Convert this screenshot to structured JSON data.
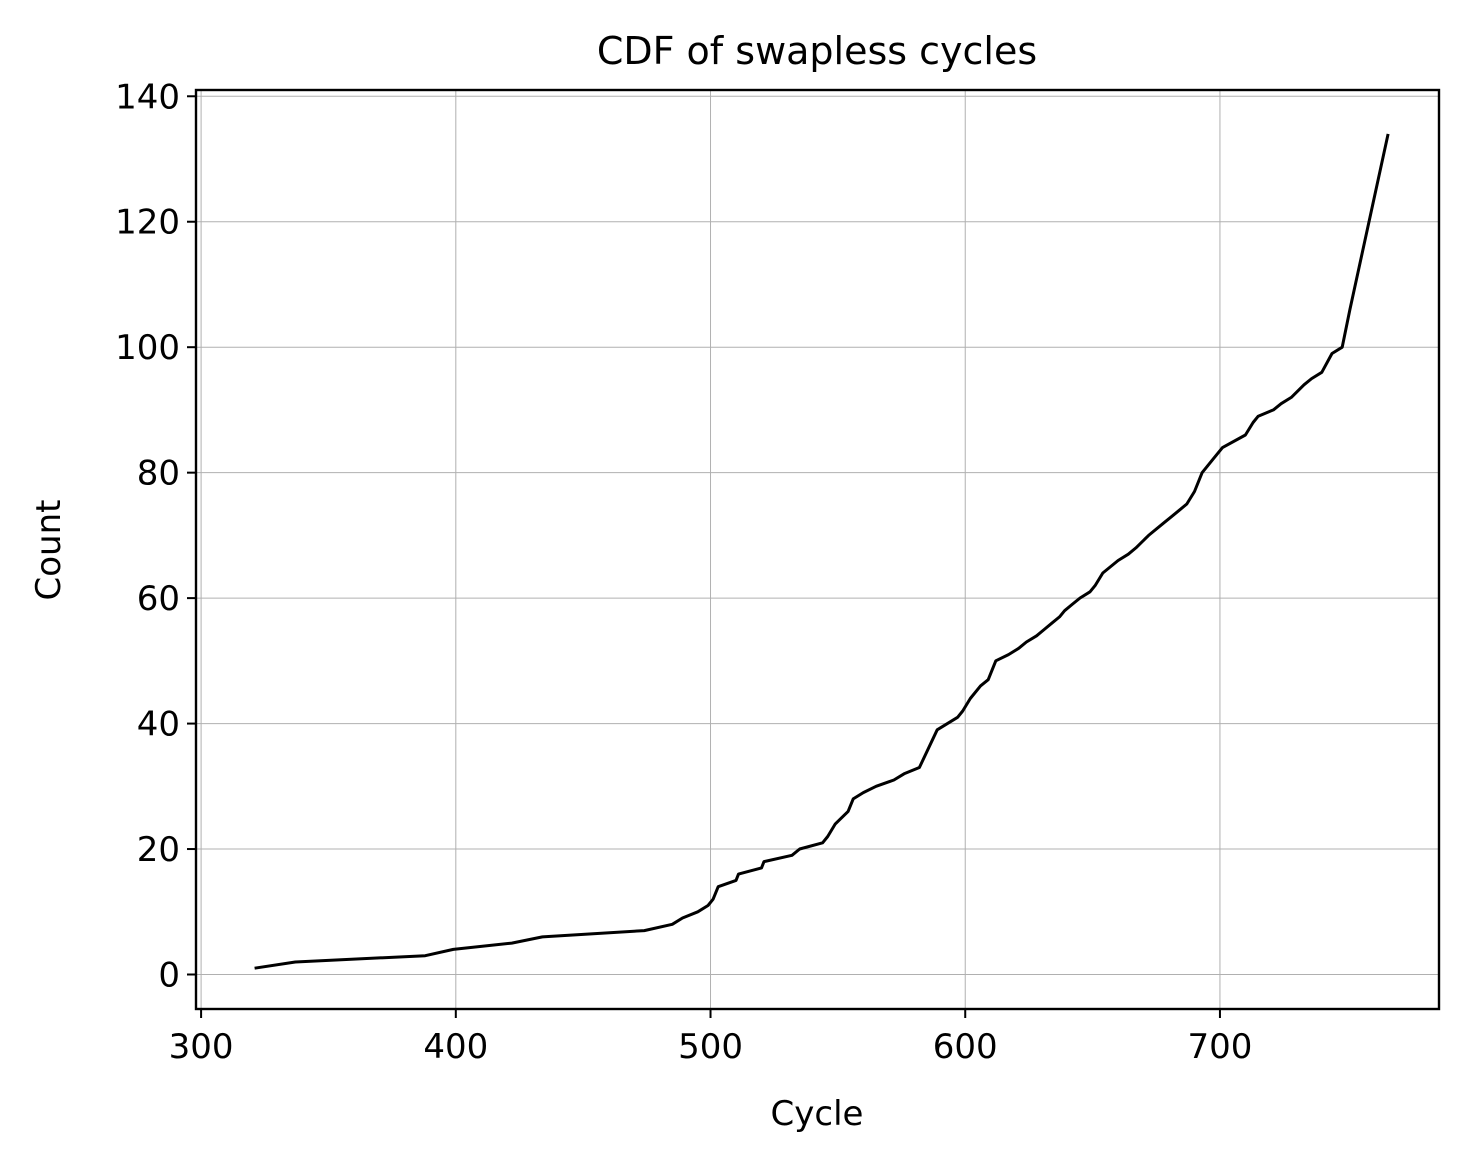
{
  "chart_data": {
    "type": "line",
    "title": "CDF of swapless cycles",
    "xlabel": "Cycle",
    "ylabel": "Count",
    "xlim": [
      298,
      786
    ],
    "ylim": [
      -5.5,
      141
    ],
    "xticks": [
      300,
      400,
      500,
      600,
      700
    ],
    "yticks": [
      0,
      20,
      40,
      60,
      80,
      100,
      120,
      140
    ],
    "grid": true,
    "line_color": "#000000",
    "series": [
      {
        "x": [
          321,
          337,
          388,
          399,
          422,
          434,
          474,
          485,
          489,
          495,
          499,
          501,
          503,
          510,
          511,
          520,
          521,
          532,
          535,
          544,
          546,
          549,
          554,
          556,
          560,
          565,
          572,
          576,
          582,
          589,
          597,
          599,
          602,
          606,
          609,
          612,
          617,
          621,
          624,
          628,
          631,
          634,
          637,
          639,
          642,
          645,
          649,
          651,
          654,
          660,
          664,
          667,
          672,
          678,
          681,
          684,
          687,
          690,
          693,
          697,
          701,
          710,
          713,
          715,
          721,
          724,
          728,
          733,
          736,
          740,
          744,
          748,
          751,
          766
        ],
        "y": [
          1,
          2,
          3,
          4,
          5,
          6,
          7,
          8,
          9,
          10,
          11,
          12,
          14,
          15,
          16,
          17,
          18,
          19,
          20,
          21,
          22,
          24,
          26,
          28,
          29,
          30,
          31,
          32,
          33,
          39,
          41,
          42,
          44,
          46,
          47,
          50,
          51,
          52,
          53,
          54,
          55,
          56,
          57,
          58,
          59,
          60,
          61,
          62,
          64,
          66,
          67,
          68,
          70,
          72,
          73,
          74,
          75,
          77,
          80,
          82,
          84,
          86,
          88,
          89,
          90,
          91,
          92,
          94,
          95,
          96,
          99,
          100,
          106,
          134
        ]
      }
    ]
  }
}
